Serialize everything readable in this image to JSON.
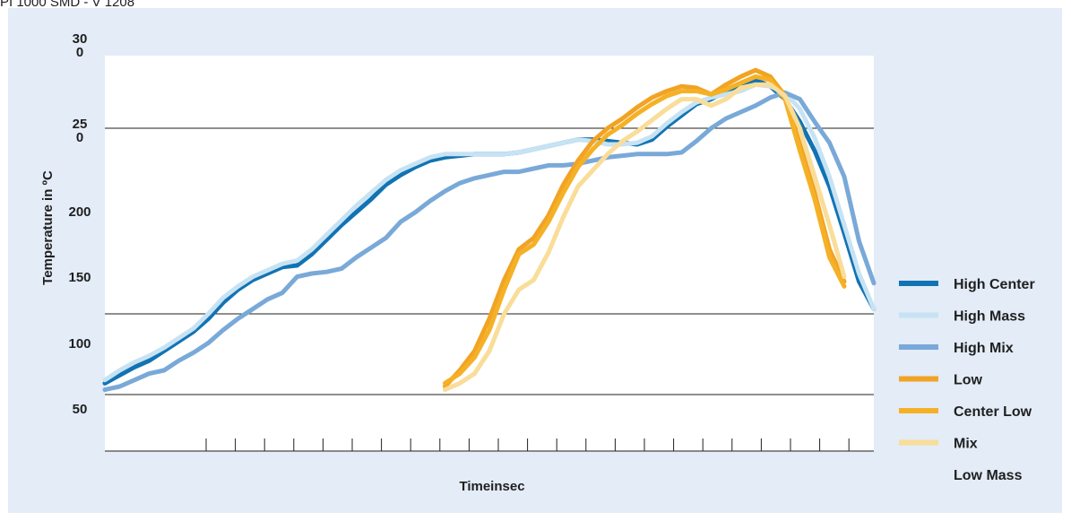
{
  "header": {
    "text": "PI 1000 SMD - V 1208"
  },
  "colors": {
    "panel_bg": "#e3ecf7",
    "plot_bg": "#ffffff",
    "high_center": "#1273b3",
    "high_mass": "#c7e3f3",
    "high_mix": "#79a9d8",
    "low": "#f2a324",
    "center_low": "#f5b126",
    "mix": "#f9dd98"
  },
  "chart_data": {
    "type": "line",
    "title": "",
    "xlabel": "Timeinsec",
    "ylabel": "Temperature in ºC",
    "y_tick_labels": [
      {
        "label": [
          "30",
          "0"
        ],
        "value": 300
      },
      {
        "label": [
          "25",
          "0"
        ],
        "value": 250
      },
      {
        "label": [
          "200"
        ],
        "value": 200
      },
      {
        "label": [
          "150"
        ],
        "value": 150
      },
      {
        "label": [
          "100"
        ],
        "value": 100
      },
      {
        "label": [
          "50"
        ],
        "value": 50
      }
    ],
    "reference_lines": [
      240,
      125,
      75
    ],
    "ylim": [
      40,
      285
    ],
    "xlim": [
      0,
      26
    ],
    "x_tick_count": 23,
    "legend_position": "right",
    "series": [
      {
        "name": "High Center",
        "color": "#1273b3",
        "width": 5,
        "x": [
          0,
          0.5,
          1,
          1.5,
          2,
          2.5,
          3,
          3.5,
          4,
          4.5,
          5,
          5.5,
          6,
          6.5,
          7,
          7.5,
          8,
          8.5,
          9,
          9.5,
          10,
          10.5,
          11,
          11.5,
          12,
          12.5,
          13,
          13.5,
          14,
          14.5,
          15,
          15.5,
          16,
          16.5,
          17,
          17.5,
          18,
          18.5,
          19,
          19.5,
          20,
          20.5,
          21,
          21.5,
          22,
          22.5,
          23,
          23.5,
          24,
          24.5,
          25,
          25.5,
          26
        ],
        "y": [
          82,
          87,
          92,
          96,
          102,
          108,
          114,
          122,
          132,
          140,
          146,
          150,
          154,
          155,
          162,
          171,
          180,
          188,
          196,
          205,
          211,
          216,
          220,
          222,
          223,
          224,
          224,
          224,
          225,
          227,
          229,
          231,
          233,
          233,
          232,
          231,
          230,
          233,
          241,
          248,
          255,
          258,
          263,
          267,
          270,
          266,
          258,
          244,
          226,
          204,
          175,
          145,
          128
        ]
      },
      {
        "name": "High Mass",
        "color": "#c7e3f3",
        "width": 5,
        "x": [
          0,
          0.5,
          1,
          1.5,
          2,
          2.5,
          3,
          3.5,
          4,
          4.5,
          5,
          5.5,
          6,
          6.5,
          7,
          7.5,
          8,
          8.5,
          9,
          9.5,
          10,
          10.5,
          11,
          11.5,
          12,
          12.5,
          13,
          13.5,
          14,
          14.5,
          15,
          15.5,
          16,
          16.5,
          17,
          17.5,
          18,
          18.5,
          19,
          19.5,
          20,
          20.5,
          21,
          21.5,
          22,
          22.5,
          23,
          23.5,
          24,
          24.5,
          25,
          25.5,
          26
        ],
        "y": [
          84,
          90,
          95,
          99,
          104,
          110,
          116,
          125,
          135,
          142,
          148,
          152,
          156,
          158,
          165,
          174,
          183,
          192,
          200,
          208,
          214,
          218,
          222,
          224,
          224,
          224,
          224,
          224,
          225,
          227,
          229,
          231,
          233,
          232,
          230,
          230,
          231,
          235,
          243,
          250,
          256,
          259,
          261,
          263,
          267,
          266,
          262,
          252,
          234,
          210,
          180,
          150,
          128
        ]
      },
      {
        "name": "High Mix",
        "color": "#79a9d8",
        "width": 5,
        "x": [
          0,
          0.5,
          1,
          1.5,
          2,
          2.5,
          3,
          3.5,
          4,
          4.5,
          5,
          5.5,
          6,
          6.5,
          7,
          7.5,
          8,
          8.5,
          9,
          9.5,
          10,
          10.5,
          11,
          11.5,
          12,
          12.5,
          13,
          13.5,
          14,
          14.5,
          15,
          15.5,
          16,
          16.5,
          17,
          17.5,
          18,
          18.5,
          19,
          19.5,
          20,
          20.5,
          21,
          21.5,
          22,
          22.5,
          23,
          23.5,
          24,
          24.5,
          25,
          25.5,
          26
        ],
        "y": [
          78,
          80,
          84,
          88,
          90,
          96,
          101,
          107,
          115,
          122,
          128,
          134,
          138,
          148,
          150,
          151,
          153,
          160,
          166,
          172,
          182,
          188,
          195,
          201,
          206,
          209,
          211,
          213,
          213,
          215,
          217,
          217,
          218,
          220,
          222,
          223,
          224,
          224,
          224,
          225,
          232,
          240,
          246,
          250,
          254,
          259,
          262,
          258,
          244,
          231,
          210,
          170,
          144
        ]
      },
      {
        "name": "Low",
        "color": "#f2a324",
        "width": 5,
        "x": [
          11.5,
          12,
          12.5,
          13,
          13.5,
          14,
          14.5,
          15,
          15.5,
          16,
          16.5,
          17,
          17.5,
          18,
          18.5,
          19,
          19.5,
          20,
          20.5,
          21,
          21.5,
          22,
          22.5,
          23,
          23.5,
          24,
          24.5,
          25
        ],
        "y": [
          80,
          90,
          102,
          122,
          146,
          165,
          172,
          186,
          205,
          220,
          232,
          240,
          246,
          253,
          259,
          263,
          266,
          265,
          261,
          267,
          272,
          276,
          272,
          260,
          230,
          200,
          165,
          145
        ]
      },
      {
        "name": "Center Low",
        "color": "#f5b126",
        "width": 5,
        "x": [
          11.5,
          12,
          12.5,
          13,
          13.5,
          14,
          14.5,
          15,
          15.5,
          16,
          16.5,
          17,
          17.5,
          18,
          18.5,
          19,
          19.5,
          20,
          20.5,
          21,
          21.5,
          22,
          22.5,
          23,
          23.5,
          24,
          24.5,
          25
        ],
        "y": [
          82,
          88,
          98,
          115,
          140,
          162,
          168,
          182,
          200,
          216,
          227,
          236,
          242,
          249,
          255,
          260,
          263,
          263,
          261,
          264,
          268,
          272,
          270,
          258,
          226,
          196,
          160,
          142
        ]
      },
      {
        "name": "Mix",
        "color": "#f9dd98",
        "width": 5,
        "x": [
          11.5,
          12,
          12.5,
          13,
          13.5,
          14,
          14.5,
          15,
          15.5,
          16,
          16.5,
          17,
          17.5,
          18,
          18.5,
          19,
          19.5,
          20,
          20.5,
          21,
          21.5,
          22,
          22.5,
          23,
          23.5,
          24,
          24.5,
          25
        ],
        "y": [
          78,
          82,
          88,
          102,
          125,
          140,
          146,
          163,
          185,
          204,
          214,
          224,
          232,
          238,
          245,
          252,
          258,
          258,
          254,
          258,
          265,
          267,
          267,
          260,
          240,
          210,
          180,
          148
        ]
      }
    ],
    "legend": [
      {
        "label": "High Center",
        "color": "#1273b3"
      },
      {
        "label": "High Mass",
        "color": "#c7e3f3"
      },
      {
        "label": "High Mix",
        "color": "#79a9d8"
      },
      {
        "label": "Low",
        "color": "#f2a324"
      },
      {
        "label": "Center Low",
        "color": "#f5b126"
      },
      {
        "label": "Mix",
        "color": "#f9dd98"
      },
      {
        "label": "Low Mass",
        "color": ""
      }
    ]
  }
}
